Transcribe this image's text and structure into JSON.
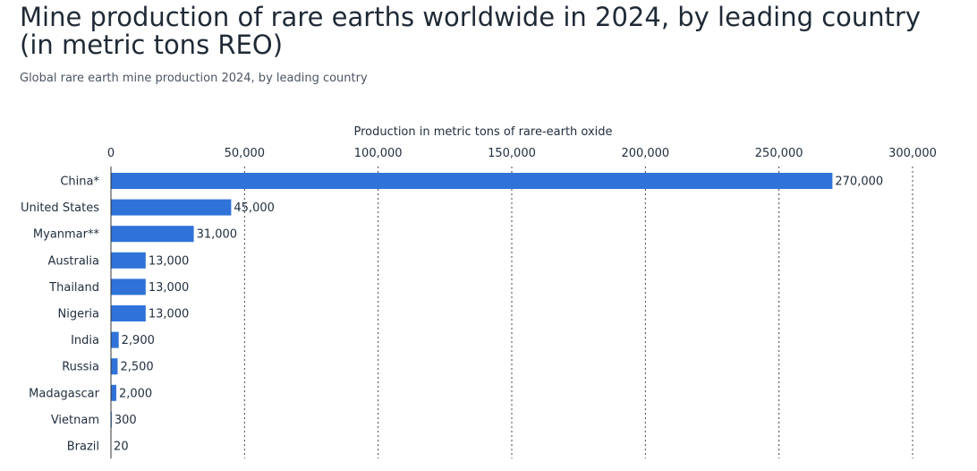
{
  "header": {
    "title": "Mine production of rare earths worldwide in 2024, by leading country (in metric tons REO)",
    "subtitle": "Global rare earth mine production 2024, by leading country"
  },
  "chart_data": {
    "type": "bar",
    "orientation": "horizontal",
    "xlabel": "Production in metric tons of rare-earth oxide",
    "xlim": [
      0,
      300000
    ],
    "x_ticks": [
      0,
      50000,
      100000,
      150000,
      200000,
      250000,
      300000
    ],
    "x_tick_labels": [
      "0",
      "50,000",
      "100,000",
      "150,000",
      "200,000",
      "250,000",
      "300,000"
    ],
    "x_axis_position": "top",
    "grid": "vertical dotted",
    "bar_color": "#2f73d9",
    "categories": [
      "China*",
      "United States",
      "Myanmar**",
      "Australia",
      "Thailand",
      "Nigeria",
      "India",
      "Russia",
      "Madagascar",
      "Vietnam",
      "Brazil"
    ],
    "values": [
      270000,
      45000,
      31000,
      13000,
      13000,
      13000,
      2900,
      2500,
      2000,
      300,
      20
    ],
    "value_labels": [
      "270,000",
      "45,000",
      "31,000",
      "13,000",
      "13,000",
      "13,000",
      "2,900",
      "2,500",
      "2,000",
      "300",
      "20"
    ]
  }
}
